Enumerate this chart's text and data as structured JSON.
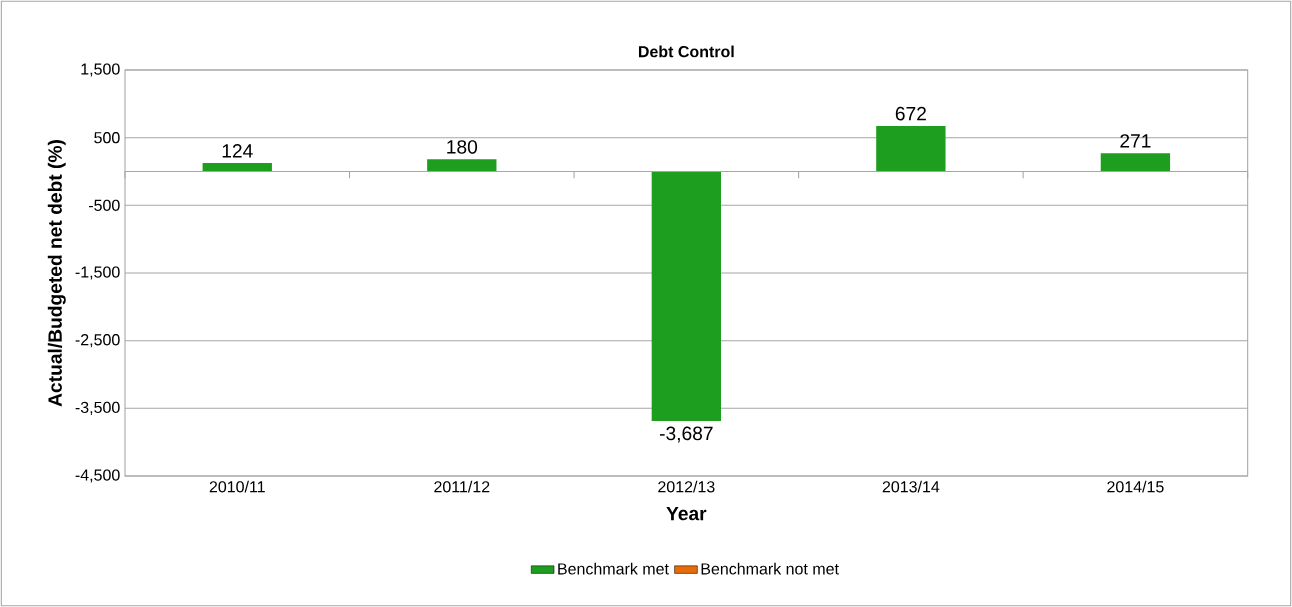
{
  "chart_data": {
    "type": "bar",
    "title": "Debt Control",
    "xlabel": "Year",
    "ylabel": "Actual/Budgeted net debt  (%)",
    "categories": [
      "2010/11",
      "2011/12",
      "2012/13",
      "2013/14",
      "2014/15"
    ],
    "series": [
      {
        "name": "Benchmark met",
        "color": "#1e9e1e",
        "values": [
          124,
          180,
          -3687,
          672,
          271
        ],
        "value_labels": [
          "124",
          "180",
          "-3,687",
          "672",
          "271"
        ]
      },
      {
        "name": "Benchmark not met",
        "color": "#e46c0a",
        "values": [
          null,
          null,
          null,
          null,
          null
        ]
      }
    ],
    "ylim": [
      -4500,
      1500
    ],
    "yticks": [
      {
        "value": 1500,
        "label": "1,500"
      },
      500,
      -500,
      {
        "value": -1500,
        "label": "-1,500"
      },
      {
        "value": -2500,
        "label": "-2,500"
      },
      {
        "value": -3500,
        "label": "-3,500"
      },
      {
        "value": -4500,
        "label": "-4,500"
      }
    ],
    "grid": "y",
    "legend": "bottom"
  }
}
